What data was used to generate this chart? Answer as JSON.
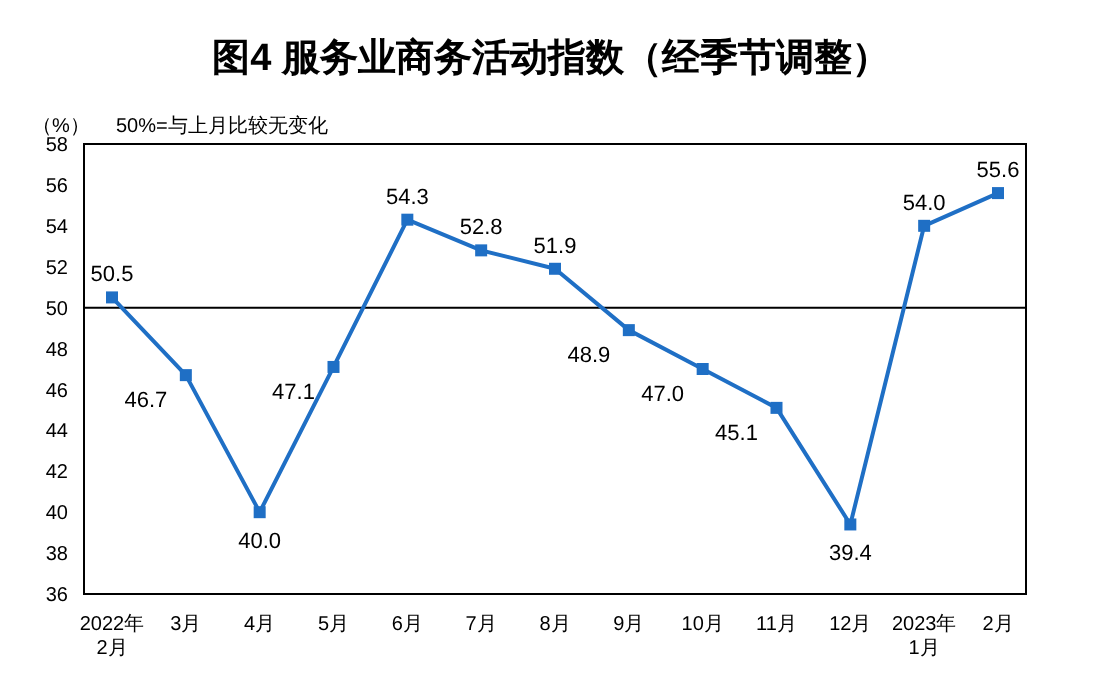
{
  "chart_data": {
    "type": "line",
    "title": "图4  服务业商务活动指数（经季节调整）",
    "ylabel": "（%）",
    "annotations": [
      "50%=与上月比较无变化"
    ],
    "categories": [
      "2022年\n2月",
      "3月",
      "4月",
      "5月",
      "6月",
      "7月",
      "8月",
      "9月",
      "10月",
      "11月",
      "12月",
      "2023年\n1月",
      "2月"
    ],
    "series": [
      {
        "color": "#1f6fc5",
        "values": [
          50.5,
          46.7,
          40.0,
          47.1,
          54.3,
          52.8,
          51.9,
          48.9,
          47.0,
          45.1,
          39.4,
          54.0,
          55.6
        ]
      }
    ],
    "ylim": [
      36,
      58
    ],
    "yticks": [
      36,
      38,
      40,
      42,
      44,
      46,
      48,
      50,
      52,
      54,
      56,
      58
    ],
    "ref_lines": [
      {
        "axis": "y",
        "value": 50,
        "color": "#000000"
      }
    ],
    "value_labels": [
      "50.5",
      "46.7",
      "40.0",
      "47.1",
      "54.3",
      "52.8",
      "51.9",
      "48.9",
      "47.0",
      "45.1",
      "39.4",
      "54.0",
      "55.6"
    ],
    "marker": "square",
    "grid": false,
    "legend": false
  }
}
